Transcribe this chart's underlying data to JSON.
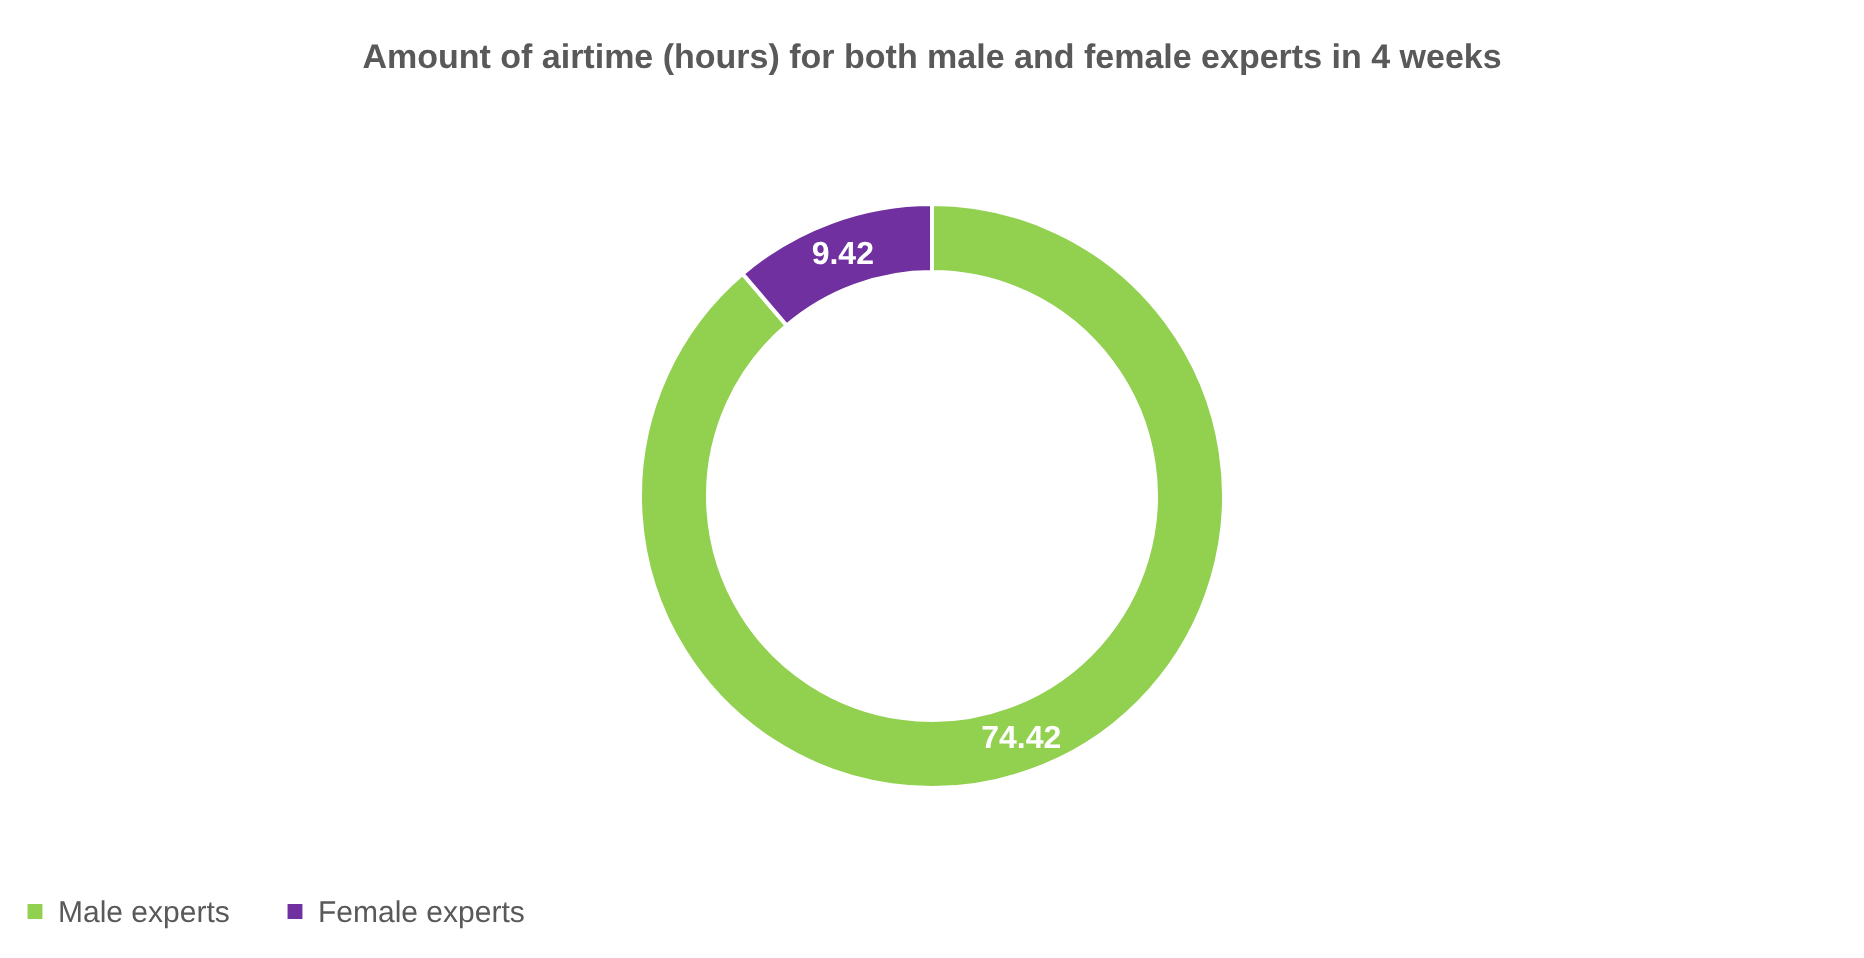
{
  "chart_data": {
    "type": "donut",
    "title": "Amount of airtime (hours) for both male and female experts in 4 weeks",
    "categories": [
      "Male experts",
      "Female experts"
    ],
    "values": [
      74.42,
      9.42
    ],
    "colors": [
      "#92d050",
      "#7030a0"
    ],
    "data_labels": true,
    "legend": "bottom"
  }
}
